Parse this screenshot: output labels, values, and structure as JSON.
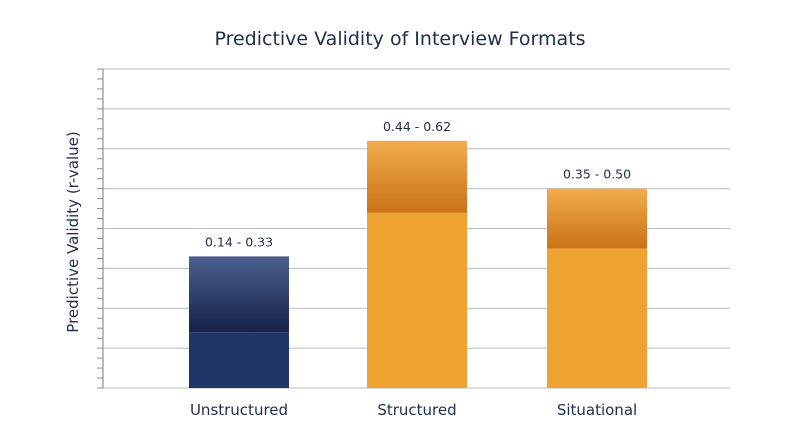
{
  "chart_data": {
    "type": "bar",
    "title": "Predictive Validity of Interview Formats",
    "xlabel": "",
    "ylabel": "Predictive Validity (r-value)",
    "ylim": [
      0,
      0.8
    ],
    "grid": true,
    "categories": [
      "Unstructured",
      "Structured",
      "Situational"
    ],
    "ranges": [
      {
        "category": "Unstructured",
        "low": 0.14,
        "high": 0.33,
        "label": "0.14 - 0.33"
      },
      {
        "category": "Structured",
        "low": 0.44,
        "high": 0.62,
        "label": "0.44 - 0.62"
      },
      {
        "category": "Situational",
        "low": 0.35,
        "high": 0.5,
        "label": "0.35 - 0.50"
      }
    ],
    "colors": {
      "Unstructured": {
        "base": "#1e3566",
        "top": "#4a5f8f",
        "mid": "#15224a"
      },
      "Structured": {
        "base": "#eea232",
        "top": "#f2ac4f",
        "mid": "#c97316"
      },
      "Situational": {
        "base": "#eea232",
        "top": "#f2ac4f",
        "mid": "#c97316"
      }
    }
  }
}
